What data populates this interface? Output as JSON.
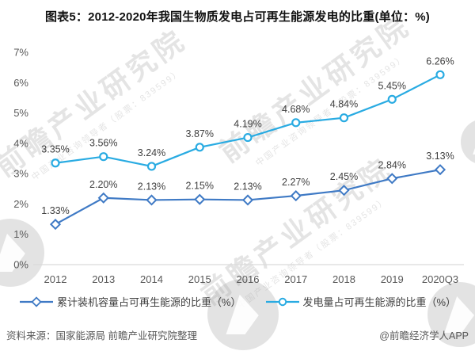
{
  "title": "图表5：2012-2020年我国生物质发电占可再生能源发电的比重(单位：%)",
  "chart_data": {
    "type": "line",
    "title": "图表5：2012-2020年我国生物质发电占可再生能源发电的比重(单位：%)",
    "categories": [
      "2012",
      "2013",
      "2014",
      "2015",
      "2016",
      "2017",
      "2018",
      "2019",
      "2020Q3"
    ],
    "ylim": [
      0,
      7
    ],
    "ytick_labels": [
      "0%",
      "1%",
      "2%",
      "3%",
      "4%",
      "5%",
      "6%",
      "7%"
    ],
    "grid": false,
    "legend_position": "bottom",
    "axis_color": "#d9d9d9",
    "series": [
      {
        "name": "累计装机容量占可再生能源的比重（%）",
        "marker": "diamond",
        "color": "#3F7AC5",
        "values": [
          1.33,
          2.2,
          2.13,
          2.15,
          2.13,
          2.27,
          2.45,
          2.84,
          3.13
        ],
        "labels": [
          "1.33%",
          "2.20%",
          "2.13%",
          "2.15%",
          "2.13%",
          "2.27%",
          "2.45%",
          "2.84%",
          "3.13%"
        ]
      },
      {
        "name": "发电量占可再生能源的比重（%）",
        "marker": "circle",
        "color": "#29ABE2",
        "values": [
          3.35,
          3.56,
          3.24,
          3.87,
          4.19,
          4.68,
          4.84,
          5.45,
          6.26
        ],
        "labels": [
          "3.35%",
          "3.56%",
          "3.24%",
          "3.87%",
          "4.19%",
          "4.68%",
          "4.84%",
          "5.45%",
          "6.26%"
        ]
      }
    ]
  },
  "footer": {
    "source": "资料来源：国家能源局 前瞻产业研究院整理",
    "credit": "@前瞻经济学人APP"
  },
  "watermark": {
    "text": "前瞻产业研究院",
    "subtext": "中国产业咨询领导者（股票：839599）"
  }
}
